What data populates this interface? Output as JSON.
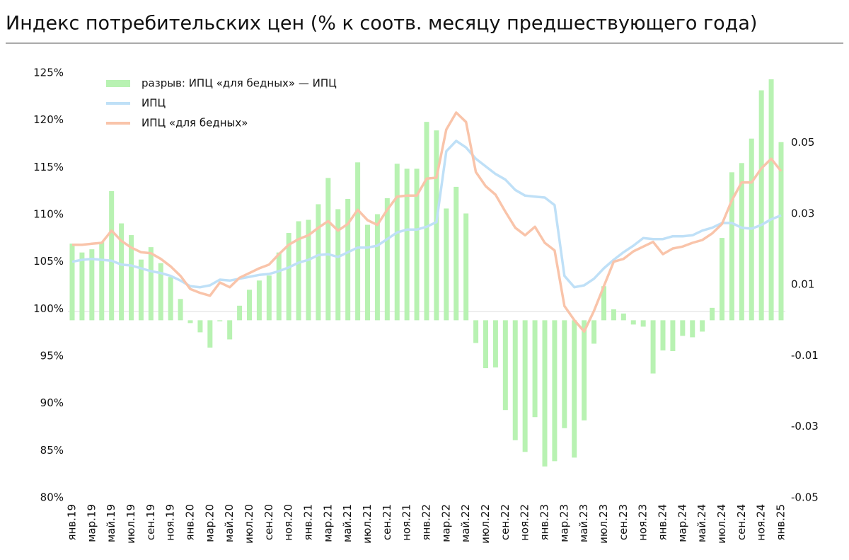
{
  "chart_data": {
    "type": "bar_line",
    "title": "Индекс потребительских цен (% к соотв. месяцу предшествующего года)",
    "categories": [
      "янв.19",
      null,
      "мар.19",
      null,
      "май.19",
      null,
      "июл.19",
      null,
      "сен.19",
      null,
      "ноя.19",
      null,
      "янв.20",
      null,
      "мар.20",
      null,
      "май.20",
      null,
      "июл.20",
      null,
      "сен.20",
      null,
      "ноя.20",
      null,
      "янв.21",
      null,
      "мар.21",
      null,
      "май.21",
      null,
      "июл.21",
      null,
      "сен.21",
      null,
      "ноя.21",
      null,
      "янв.22",
      null,
      "мар.22",
      null,
      "май.22",
      null,
      "июл.22",
      null,
      "сен.22",
      null,
      "ноя.22",
      null,
      "янв.23",
      null,
      "мар.23",
      null,
      "май.23",
      null,
      "июл.23",
      null,
      "сен.23",
      null,
      "ноя.23",
      null,
      "янв.24",
      null,
      "мар.24",
      null,
      "май.24",
      null,
      "июл.24",
      null,
      "сен.24",
      null,
      "ноя.24",
      null,
      "янв.25"
    ],
    "series": [
      {
        "name": "разрыв: ИПЦ «для бедных» — ИПЦ",
        "type": "bar",
        "axis": "y2",
        "color": "#b8f2b2",
        "values": [
          0.0216,
          0.0191,
          0.02,
          0.022,
          0.0364,
          0.0273,
          0.024,
          0.0171,
          0.0206,
          0.0161,
          0.0122,
          0.006,
          -0.0008,
          -0.0034,
          -0.0077,
          -0.0003,
          -0.0054,
          0.0041,
          0.0086,
          0.0112,
          0.0126,
          0.0191,
          0.0246,
          0.0279,
          0.0283,
          0.0327,
          0.0401,
          0.0313,
          0.0342,
          0.0445,
          0.0269,
          0.0299,
          0.0344,
          0.0441,
          0.0427,
          0.0427,
          0.0559,
          0.0535,
          0.0315,
          0.0376,
          0.0301,
          -0.0064,
          -0.0135,
          -0.0133,
          -0.0253,
          -0.0338,
          -0.0371,
          -0.0273,
          -0.0412,
          -0.0397,
          -0.0304,
          -0.0387,
          -0.0282,
          -0.0066,
          0.0096,
          0.0031,
          0.0019,
          -0.0012,
          -0.0018,
          -0.015,
          -0.0085,
          -0.0087,
          -0.0044,
          -0.0048,
          -0.0032,
          0.0035,
          0.0232,
          0.0417,
          0.0443,
          0.0512,
          0.0648,
          0.0679,
          0.0502
        ]
      },
      {
        "name": "ИПЦ",
        "type": "line",
        "color": "#bfe0f7",
        "values": [
          105.0,
          105.2,
          105.3,
          105.2,
          105.1,
          104.7,
          104.6,
          104.3,
          104.0,
          103.8,
          103.5,
          103.0,
          102.4,
          102.3,
          102.5,
          103.1,
          103.0,
          103.2,
          103.4,
          103.6,
          103.7,
          104.0,
          104.4,
          104.9,
          105.2,
          105.7,
          105.8,
          105.5,
          106.0,
          106.5,
          106.5,
          106.7,
          107.4,
          108.1,
          108.4,
          108.4,
          108.7,
          109.2,
          116.7,
          117.8,
          117.1,
          115.9,
          115.1,
          114.3,
          113.7,
          112.6,
          112.0,
          111.9,
          111.8,
          111.0,
          103.5,
          102.3,
          102.5,
          103.2,
          104.3,
          105.2,
          106.0,
          106.7,
          107.5,
          107.4,
          107.4,
          107.7,
          107.7,
          107.8,
          108.3,
          108.6,
          109.1,
          109.1,
          108.6,
          108.5,
          108.9,
          109.5,
          109.9
        ]
      },
      {
        "name": "ИПЦ «для бедных»",
        "type": "line",
        "color": "#f9c4aa",
        "values": [
          106.8,
          106.8,
          106.9,
          107.0,
          108.3,
          107.2,
          106.5,
          106.0,
          105.9,
          105.3,
          104.5,
          103.5,
          102.1,
          101.7,
          101.4,
          102.8,
          102.3,
          103.3,
          103.8,
          104.3,
          104.7,
          105.8,
          106.8,
          107.4,
          107.8,
          108.6,
          109.3,
          108.3,
          109.0,
          110.5,
          109.4,
          108.9,
          110.5,
          111.9,
          112.0,
          112.0,
          113.8,
          113.9,
          119.0,
          120.8,
          119.8,
          114.5,
          113.0,
          112.1,
          110.3,
          108.6,
          107.8,
          108.7,
          107.0,
          106.2,
          100.3,
          98.8,
          97.6,
          99.8,
          102.4,
          105.0,
          105.3,
          106.1,
          106.6,
          107.1,
          105.8,
          106.4,
          106.6,
          107.0,
          107.3,
          108.0,
          109.0,
          111.5,
          113.4,
          113.4,
          114.9,
          115.9,
          114.6
        ]
      }
    ],
    "ylim": [
      80,
      125
    ],
    "yticks": [
      {
        "value": 80,
        "label": "80%"
      },
      {
        "value": 85,
        "label": "85%"
      },
      {
        "value": 90,
        "label": "90%"
      },
      {
        "value": 95,
        "label": "95%"
      },
      {
        "value": 100,
        "label": "100%"
      },
      {
        "value": 105,
        "label": "105%"
      },
      {
        "value": 110,
        "label": "110%"
      },
      {
        "value": 115,
        "label": "115%"
      },
      {
        "value": 120,
        "label": "120%"
      },
      {
        "value": 125,
        "label": "125%"
      }
    ],
    "y2lim": [
      -0.05,
      0.0697
    ],
    "y2ticks": [
      -0.05,
      -0.03,
      -0.01,
      0.01,
      0.03,
      0.05
    ],
    "legend": "upper left"
  }
}
